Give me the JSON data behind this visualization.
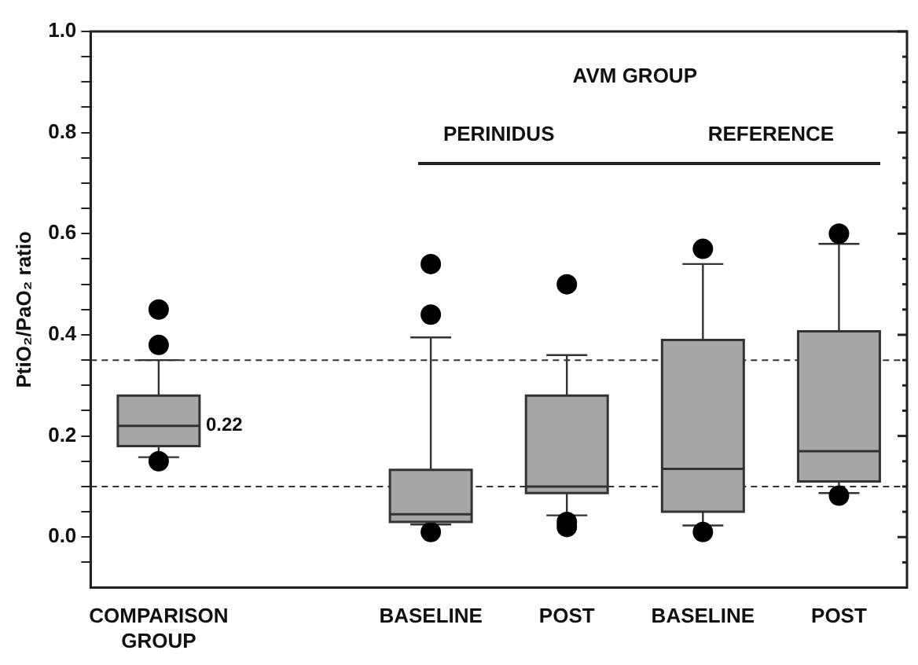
{
  "chart_data": {
    "type": "box",
    "ylabel": "PtiO₂/PaO₂ ratio",
    "categories": [
      "COMPARISON GROUP",
      null,
      "BASELINE",
      "POST",
      "BASELINE",
      "POST"
    ],
    "color": "#a6a6a6",
    "boxes": [
      {
        "low": 0.158,
        "q1": 0.18,
        "median": 0.22,
        "q3": 0.28,
        "high": 0.35,
        "outliers": [
          0.45,
          0.38,
          0.15
        ]
      },
      null,
      {
        "low": 0.025,
        "q1": 0.03,
        "median": 0.045,
        "q3": 0.133,
        "high": 0.395,
        "outliers": [
          0.54,
          0.44,
          0.01
        ]
      },
      {
        "low": 0.043,
        "q1": 0.087,
        "median": 0.1,
        "q3": 0.28,
        "high": 0.36,
        "outliers": [
          0.5,
          0.03,
          0.02
        ]
      },
      {
        "low": 0.023,
        "q1": 0.05,
        "median": 0.135,
        "q3": 0.39,
        "high": 0.54,
        "outliers": [
          0.57,
          0.01
        ]
      },
      {
        "low": 0.087,
        "q1": 0.11,
        "median": 0.17,
        "q3": 0.407,
        "high": 0.58,
        "outliers": [
          0.6,
          0.082
        ]
      }
    ],
    "ylim": [
      -0.1,
      1.0
    ],
    "yticks": [
      {
        "value": -0.05,
        "label": null
      },
      "0.0",
      {
        "value": 0.05,
        "label": null
      },
      {
        "value": 0.1,
        "label": null
      },
      {
        "value": 0.15,
        "label": null
      },
      0.2,
      {
        "value": 0.25,
        "label": null
      },
      {
        "value": 0.3,
        "label": null
      },
      {
        "value": 0.35,
        "label": null
      },
      0.4,
      {
        "value": 0.45,
        "label": null
      },
      {
        "value": 0.5,
        "label": null
      },
      {
        "value": 0.55,
        "label": null
      },
      0.6,
      {
        "value": 0.65,
        "label": null
      },
      {
        "value": 0.7,
        "label": null
      },
      {
        "value": 0.75,
        "label": null
      },
      0.8,
      {
        "value": 0.85,
        "label": null
      },
      {
        "value": 0.9,
        "label": null
      },
      {
        "value": 0.95,
        "label": null
      },
      {
        "value": 1.0,
        "label": "1.0"
      }
    ],
    "ref_lines": [
      {
        "axis": "y",
        "value": 0.35,
        "line_style": "dashed",
        "color": "#333333"
      },
      {
        "axis": "y",
        "value": 0.1,
        "line_style": "dashed",
        "color": "#333333"
      }
    ],
    "annotations": [
      "AVM GROUP",
      "PERINIDUS",
      "REFERENCE",
      {
        "text": "0.22",
        "x": "COMPARISON GROUP",
        "y": 0.22
      }
    ],
    "marker": "circle",
    "grid": false,
    "legend": false
  }
}
